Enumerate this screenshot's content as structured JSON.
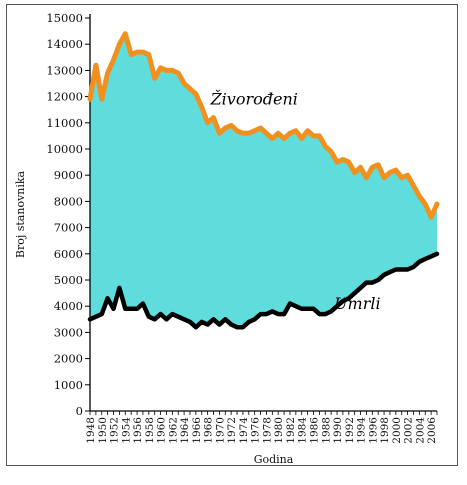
{
  "chart_data": {
    "type": "area",
    "xlabel": "Godina",
    "ylabel": "Broj stanovnika",
    "ylim": [
      0,
      15000
    ],
    "yticks": [
      0,
      1000,
      2000,
      3000,
      4000,
      5000,
      6000,
      7000,
      8000,
      9000,
      10000,
      11000,
      12000,
      13000,
      14000,
      15000
    ],
    "xlim": [
      1948,
      2007
    ],
    "xticks": [
      "1948",
      "1950",
      "1952",
      "1954",
      "1956",
      "1958",
      "1960",
      "1962",
      "1964",
      "1966",
      "1968",
      "1970",
      "1972",
      "1974",
      "1976",
      "1978",
      "1980",
      "1982",
      "1984",
      "1986",
      "1988",
      "1990",
      "1992",
      "1994",
      "1996",
      "1998",
      "2000",
      "2002",
      "2004",
      "2006"
    ],
    "grid": false,
    "fill_color": "#5fdcdc",
    "series": [
      {
        "name": "Živorođeni",
        "color": "#f0901e",
        "x": [
          1948,
          1949,
          1950,
          1951,
          1952,
          1953,
          1954,
          1955,
          1956,
          1957,
          1958,
          1959,
          1960,
          1961,
          1962,
          1963,
          1964,
          1965,
          1966,
          1967,
          1968,
          1969,
          1970,
          1971,
          1972,
          1973,
          1974,
          1975,
          1976,
          1977,
          1978,
          1979,
          1980,
          1981,
          1982,
          1983,
          1984,
          1985,
          1986,
          1987,
          1988,
          1989,
          1990,
          1991,
          1992,
          1993,
          1994,
          1995,
          1996,
          1997,
          1998,
          1999,
          2000,
          2001,
          2002,
          2003,
          2004,
          2005,
          2006,
          2007
        ],
        "values": [
          11900,
          13200,
          11900,
          12900,
          13400,
          14000,
          14400,
          13600,
          13700,
          13700,
          13600,
          12700,
          13100,
          13000,
          13000,
          12900,
          12500,
          12300,
          12100,
          11600,
          11000,
          11200,
          10600,
          10800,
          10900,
          10700,
          10600,
          10600,
          10700,
          10800,
          10600,
          10400,
          10600,
          10400,
          10600,
          10700,
          10400,
          10700,
          10500,
          10500,
          10100,
          9900,
          9500,
          9600,
          9500,
          9100,
          9300,
          8900,
          9300,
          9400,
          8900,
          9100,
          9200,
          8900,
          9000,
          8600,
          8200,
          7900,
          7400,
          7900
        ]
      },
      {
        "name": "Umrli",
        "color": "#000000",
        "x": [
          1948,
          1949,
          1950,
          1951,
          1952,
          1953,
          1954,
          1955,
          1956,
          1957,
          1958,
          1959,
          1960,
          1961,
          1962,
          1963,
          1964,
          1965,
          1966,
          1967,
          1968,
          1969,
          1970,
          1971,
          1972,
          1973,
          1974,
          1975,
          1976,
          1977,
          1978,
          1979,
          1980,
          1981,
          1982,
          1983,
          1984,
          1985,
          1986,
          1987,
          1988,
          1989,
          1990,
          1991,
          1992,
          1993,
          1994,
          1995,
          1996,
          1997,
          1998,
          1999,
          2000,
          2001,
          2002,
          2003,
          2004,
          2005,
          2006,
          2007
        ],
        "values": [
          3500,
          3600,
          3700,
          4300,
          3900,
          4700,
          3900,
          3900,
          3900,
          4100,
          3600,
          3500,
          3700,
          3500,
          3700,
          3600,
          3500,
          3400,
          3200,
          3400,
          3300,
          3500,
          3300,
          3500,
          3300,
          3200,
          3200,
          3400,
          3500,
          3700,
          3700,
          3800,
          3700,
          3700,
          4100,
          4000,
          3900,
          3900,
          3900,
          3700,
          3700,
          3800,
          4000,
          4200,
          4300,
          4500,
          4700,
          4900,
          4900,
          5000,
          5200,
          5300,
          5400,
          5400,
          5400,
          5500,
          5700,
          5800,
          5900,
          6000
        ]
      }
    ],
    "annotations": [
      {
        "text": "Živorođeni",
        "x": 1968.5,
        "y": 11700
      },
      {
        "text": "Umrli",
        "x": 1989.5,
        "y": 3900
      }
    ]
  }
}
